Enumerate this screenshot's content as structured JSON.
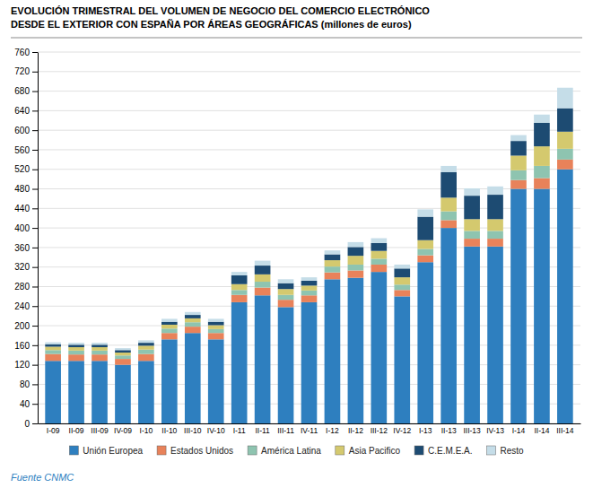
{
  "chart_data": {
    "type": "bar",
    "title": "EVOLUCIÓN TRIMESTRAL DEL VOLUMEN DE NEGOCIO DEL COMERCIO ELECTRÓNICO",
    "subtitle": "DESDE EL EXTERIOR CON ESPAÑA POR ÁREAS GEOGRÁFICAS (millones de euros)",
    "source": "Fuente CNMC",
    "categories": [
      "I-09",
      "II-09",
      "III-09",
      "IV-09",
      "I-10",
      "II-10",
      "III-10",
      "IV-10",
      "I-11",
      "II-11",
      "III-11",
      "IV-11",
      "I-12",
      "II-12",
      "III-12",
      "IV-12",
      "I-13",
      "II-13",
      "III-13",
      "IV-13",
      "I-14",
      "II-14",
      "III-14"
    ],
    "series": [
      {
        "name": "Unión Europea",
        "color": "#2e7fbf",
        "values": [
          128,
          128,
          128,
          120,
          128,
          172,
          185,
          172,
          248,
          262,
          238,
          248,
          295,
          298,
          310,
          260,
          330,
          400,
          362,
          362,
          480,
          480,
          520
        ]
      },
      {
        "name": "Estados Unidos",
        "color": "#e8825a",
        "values": [
          14,
          13,
          13,
          12,
          14,
          13,
          13,
          13,
          15,
          16,
          15,
          14,
          14,
          15,
          15,
          13,
          14,
          16,
          16,
          16,
          18,
          22,
          20
        ]
      },
      {
        "name": "América Latina",
        "color": "#8ec4b0",
        "values": [
          8,
          8,
          8,
          7,
          9,
          9,
          9,
          8,
          10,
          12,
          10,
          10,
          12,
          12,
          12,
          11,
          13,
          18,
          16,
          16,
          20,
          25,
          22
        ]
      },
      {
        "name": "Asia Pacifico",
        "color": "#d4c96e",
        "values": [
          7,
          7,
          7,
          6,
          8,
          8,
          8,
          8,
          12,
          15,
          12,
          10,
          13,
          18,
          16,
          15,
          18,
          28,
          24,
          24,
          30,
          40,
          35
        ]
      },
      {
        "name": "C.E.M.E.A.",
        "color": "#1d4b72",
        "values": [
          5,
          5,
          5,
          5,
          6,
          6,
          7,
          7,
          18,
          18,
          12,
          10,
          12,
          18,
          16,
          18,
          48,
          52,
          48,
          50,
          30,
          48,
          48
        ]
      },
      {
        "name": "Resto",
        "color": "#c5dde8",
        "values": [
          4,
          4,
          4,
          4,
          5,
          6,
          6,
          6,
          7,
          10,
          8,
          7,
          8,
          10,
          10,
          8,
          15,
          13,
          15,
          17,
          12,
          17,
          42
        ]
      }
    ],
    "ylim": [
      0,
      760
    ],
    "yticks": [
      0,
      40,
      80,
      120,
      160,
      200,
      240,
      280,
      320,
      360,
      400,
      440,
      480,
      520,
      560,
      600,
      640,
      680,
      720,
      760
    ],
    "stacked": true,
    "grid": true,
    "legend": "bottom"
  }
}
